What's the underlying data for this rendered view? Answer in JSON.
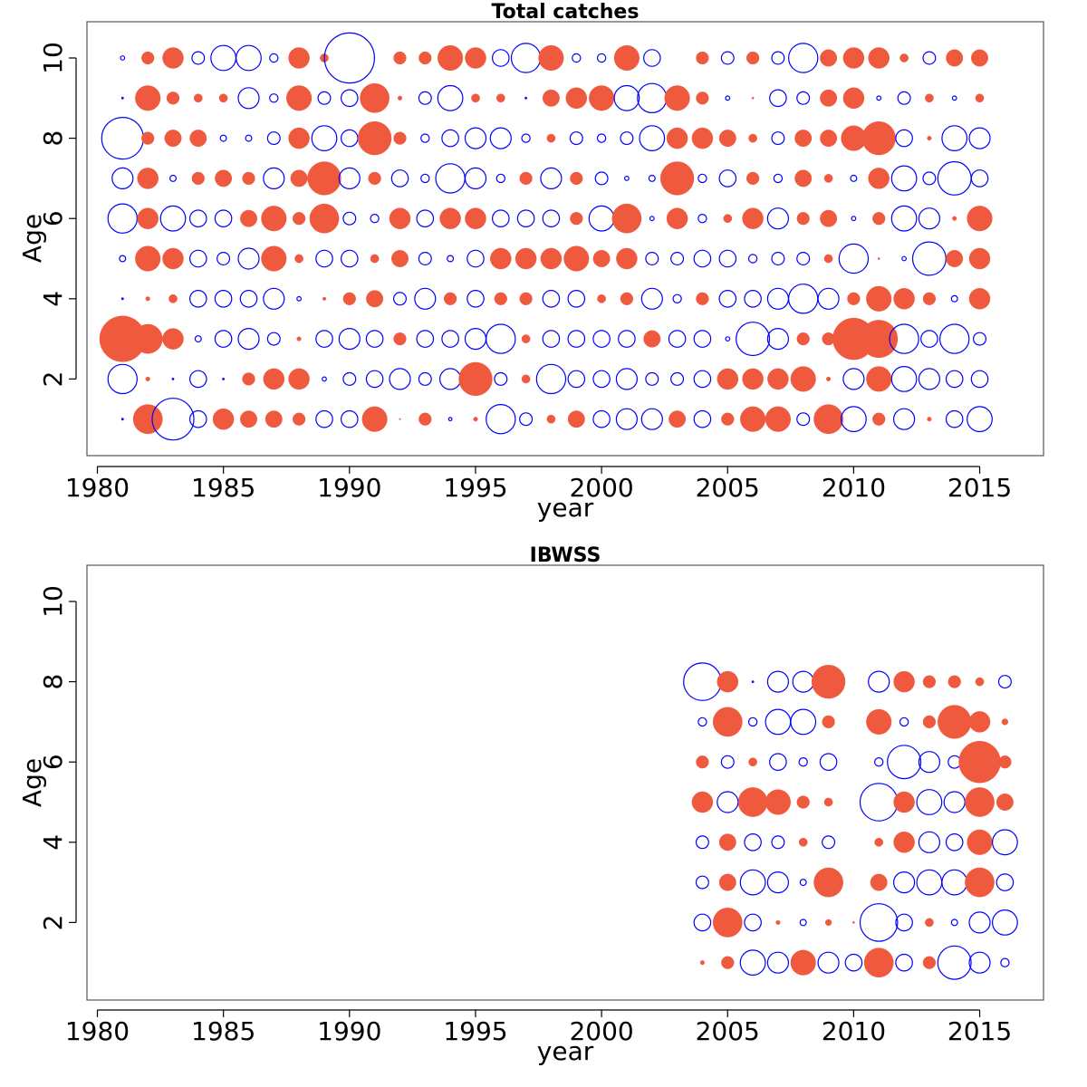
{
  "colors": {
    "positive": "#ef5a3f",
    "negative": "#0000ff"
  },
  "chart_data": [
    {
      "type": "scatter",
      "title": "Total catches",
      "xlabel": "year",
      "ylabel": "Age",
      "xticks": [
        "1980",
        "1985",
        "1990",
        "1995",
        "2000",
        "2005",
        "2010",
        "2015"
      ],
      "yticks": [
        "2",
        "4",
        "6",
        "8",
        "10"
      ],
      "xlim": [
        1980,
        2015
      ],
      "ylim": [
        1,
        10
      ],
      "years": [
        1981,
        1982,
        1983,
        1984,
        1985,
        1986,
        1987,
        1988,
        1989,
        1990,
        1991,
        1992,
        1993,
        1994,
        1995,
        1996,
        1997,
        1998,
        1999,
        2000,
        2001,
        2002,
        2003,
        2004,
        2005,
        2006,
        2007,
        2008,
        2009,
        2010,
        2011,
        2012,
        2013,
        2014,
        2015
      ],
      "ages": [
        1,
        2,
        3,
        4,
        5,
        6,
        7,
        8,
        9,
        10
      ],
      "residuals_by_age": {
        "10": [
          -1,
          3,
          5,
          -3,
          -6,
          -6,
          -2,
          5,
          2,
          -12,
          0,
          3,
          3,
          6,
          5,
          -4,
          -7,
          6,
          -2,
          -2,
          6,
          -4,
          0,
          3,
          -3,
          3,
          -3,
          -7,
          4,
          5,
          5,
          2,
          -3,
          4,
          4
        ],
        "9": [
          -0.3,
          6,
          3,
          2,
          2,
          -5,
          -2,
          6,
          -3,
          -4,
          7,
          1,
          -3,
          -6,
          2,
          2,
          -0.3,
          4,
          5,
          6,
          -6,
          -7,
          6,
          3,
          -1,
          0.5,
          -4,
          -3,
          4,
          5,
          -1,
          -3,
          2,
          -1,
          2
        ],
        "8": [
          -10,
          3,
          4,
          4,
          -1.5,
          -1.5,
          -3,
          5,
          -6,
          -4,
          8,
          3,
          -2,
          -4,
          -5,
          -5,
          -2,
          2,
          -3,
          -2,
          -3,
          -6,
          5,
          5,
          4,
          2,
          -3,
          4,
          4,
          6,
          8,
          -4,
          1,
          -6,
          -5
        ],
        "7": [
          -5,
          5,
          -1.5,
          3,
          4,
          3,
          -5,
          4,
          8,
          -5,
          3,
          -4,
          -2,
          -7,
          -5,
          -2,
          3,
          -5,
          3,
          -3,
          -1,
          -1.5,
          8,
          -2,
          -4,
          3,
          -2,
          4,
          2,
          -1.5,
          5,
          -6,
          -3,
          -8,
          -4
        ],
        "6": [
          -7,
          5,
          -6,
          -4,
          -4,
          4,
          6,
          3,
          7,
          -3,
          -2,
          5,
          -4,
          5,
          5,
          -4,
          -4,
          -4,
          3,
          -6,
          7,
          -1,
          5,
          -2,
          2,
          5,
          -5,
          3,
          4,
          -1,
          3,
          -6,
          -5,
          1,
          6
        ],
        "5": [
          -1.5,
          6,
          5,
          -4,
          -3,
          -5,
          6,
          2,
          -4,
          -4,
          2,
          4,
          -3,
          -1.5,
          -4,
          5,
          5,
          5,
          6,
          4,
          5,
          -3,
          -3,
          -4,
          -4,
          -2,
          -3,
          -3,
          2,
          -7,
          0.5,
          -1,
          -8,
          4,
          5
        ],
        "4": [
          -0.1,
          1,
          2,
          -4,
          -4,
          -4,
          -5,
          -1,
          0.8,
          3,
          4,
          -3,
          -5,
          3,
          -4,
          3,
          3,
          -4,
          -4,
          2,
          3,
          -5,
          -2,
          3,
          -4,
          -4,
          -5,
          -7,
          -5,
          3,
          6,
          5,
          3,
          -1.5,
          5
        ],
        "3": [
          11,
          7,
          5,
          -1.5,
          -4,
          -5,
          -3,
          1,
          -4,
          -5,
          -4,
          3,
          -4,
          -4,
          -5,
          -7,
          2,
          -4,
          -4,
          -4,
          -4,
          4,
          -4,
          -4,
          -1,
          -8,
          -5,
          3,
          3,
          10,
          9,
          -7,
          -4,
          -7,
          -3
        ],
        "2": [
          -7,
          1,
          -0.3,
          -4,
          -0.3,
          3,
          5,
          5,
          -1,
          -3,
          -4,
          -5,
          -3,
          -5,
          8,
          -3,
          2,
          -7,
          -4,
          -4,
          -5,
          -3,
          -3,
          -4,
          5,
          5,
          5,
          6,
          1,
          -5,
          6,
          -6,
          -5,
          -4,
          -4
        ],
        "1": [
          -0.3,
          7,
          -10,
          -4,
          5,
          4,
          4,
          3,
          -4,
          -4,
          6,
          0.1,
          3,
          -0.8,
          1,
          -7,
          -3,
          2,
          4,
          -4,
          -5,
          -5,
          4,
          -4,
          3,
          6,
          6,
          -3,
          7,
          -6,
          3,
          -5,
          1,
          -4,
          -6
        ]
      }
    },
    {
      "type": "scatter",
      "title": "IBWSS",
      "xlabel": "year",
      "ylabel": "Age",
      "xticks": [
        "1980",
        "1985",
        "1990",
        "1995",
        "2000",
        "2005",
        "2010",
        "2015"
      ],
      "yticks": [
        "2",
        "4",
        "6",
        "8",
        "10"
      ],
      "xlim": [
        1980,
        2016
      ],
      "ylim": [
        1,
        10
      ],
      "years": [
        2004,
        2005,
        2006,
        2007,
        2008,
        2009,
        2010,
        2011,
        2012,
        2013,
        2014,
        2015,
        2016
      ],
      "ages": [
        1,
        2,
        3,
        4,
        5,
        6,
        7,
        8
      ],
      "residuals_by_age": {
        "8": [
          -9,
          5,
          -0.3,
          -5,
          -5,
          8,
          0,
          -5,
          5,
          3,
          3,
          2,
          -3
        ],
        "7": [
          -2,
          7,
          -2,
          -6,
          -6,
          3,
          0,
          6,
          -2,
          3,
          8,
          5,
          1.5
        ],
        "6": [
          3,
          -3,
          2,
          -4,
          -2,
          -4,
          0,
          -2,
          -8,
          -5,
          -3,
          10,
          3
        ],
        "5": [
          5,
          -5,
          7,
          6,
          3,
          2,
          0,
          -9,
          5,
          -6,
          -5,
          7,
          4
        ],
        "4": [
          -3,
          4,
          -4,
          -3,
          2,
          -3,
          0,
          2,
          5,
          -5,
          -4,
          6,
          -6
        ],
        "3": [
          -3,
          4,
          -6,
          -5,
          -1.5,
          7,
          0,
          4,
          -5,
          -6,
          -6,
          7,
          -4
        ],
        "2": [
          -4,
          7,
          -4,
          1,
          -1.5,
          1.5,
          0.5,
          -9,
          -4,
          2,
          -1.5,
          -5,
          -6
        ],
        "1": [
          1,
          3,
          -6,
          -5,
          6,
          -5,
          -4,
          7,
          -4,
          3,
          -8,
          -5,
          -2
        ]
      }
    }
  ]
}
